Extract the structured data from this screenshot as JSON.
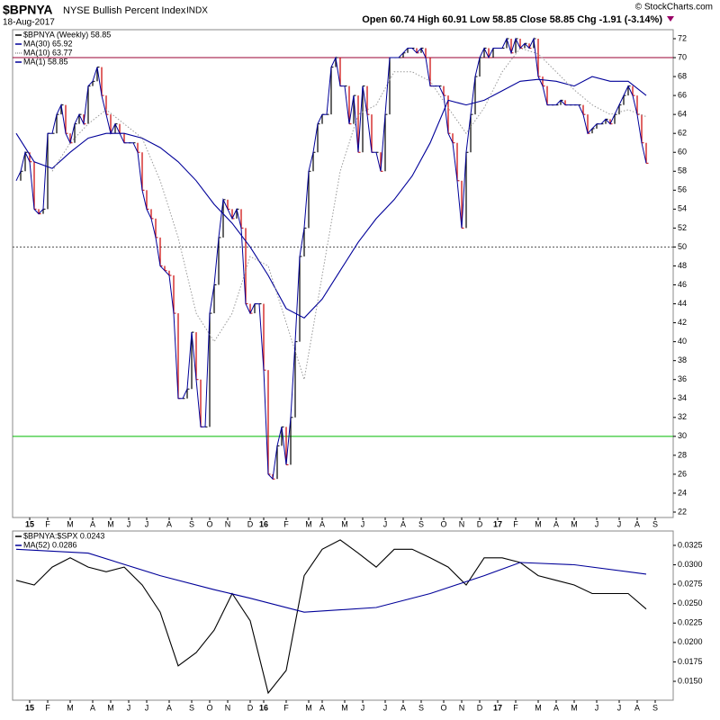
{
  "header": {
    "symbol": "$BPNYA",
    "name": "NYSE Bullish Percent Index",
    "exchange": "INDX",
    "date": "18-Aug-2017",
    "quote": "Open 60.74  High 60.91  Low 58.85  Close 58.85  Chg -1.91 (-3.14%)",
    "copyright": "© StockCharts.com"
  },
  "chart_data": [
    {
      "type": "line",
      "xlim": [
        -0.8,
        146
      ],
      "xticks": [
        {
          "value": 3,
          "label": "15"
        },
        {
          "value": 7,
          "label": "F"
        },
        {
          "value": 12,
          "label": "M"
        },
        {
          "value": 17,
          "label": "A"
        },
        {
          "value": 21,
          "label": "M"
        },
        {
          "value": 25,
          "label": "J"
        },
        {
          "value": 29,
          "label": "J"
        },
        {
          "value": 34,
          "label": "A"
        },
        {
          "value": 39,
          "label": "S"
        },
        {
          "value": 43,
          "label": "O"
        },
        {
          "value": 47,
          "label": "N"
        },
        {
          "value": 52,
          "label": "D"
        },
        {
          "value": 55,
          "label": "16"
        },
        {
          "value": 60,
          "label": "F"
        },
        {
          "value": 65,
          "label": "M"
        },
        {
          "value": 68,
          "label": "A"
        },
        {
          "value": 73,
          "label": "M"
        },
        {
          "value": 77,
          "label": "J"
        },
        {
          "value": 82,
          "label": "J"
        },
        {
          "value": 86,
          "label": "A"
        },
        {
          "value": 90,
          "label": "S"
        },
        {
          "value": 95,
          "label": "O"
        },
        {
          "value": 99,
          "label": "N"
        },
        {
          "value": 103,
          "label": "D"
        },
        {
          "value": 107,
          "label": "17"
        },
        {
          "value": 111,
          "label": "F"
        },
        {
          "value": 116,
          "label": "M"
        },
        {
          "value": 120,
          "label": "A"
        },
        {
          "value": 124,
          "label": "M"
        },
        {
          "value": 129,
          "label": "J"
        },
        {
          "value": 134,
          "label": "J"
        },
        {
          "value": 138,
          "label": "A"
        },
        {
          "value": 142,
          "label": "S"
        }
      ],
      "ylim": [
        21.43,
        72.95
      ],
      "yticks": [
        22,
        24,
        26,
        28,
        30,
        32,
        34,
        36,
        38,
        40,
        42,
        44,
        46,
        48,
        50,
        52,
        54,
        56,
        58,
        60,
        62,
        64,
        66,
        68,
        70,
        72
      ],
      "hlines": [
        {
          "value": 70,
          "color": "#990033",
          "dash": false
        },
        {
          "value": 50,
          "color": "#555555",
          "dash": true
        },
        {
          "value": 30,
          "color": "#00bb00",
          "dash": false
        }
      ],
      "series": [
        {
          "name": "$BPNYA (Weekly) 58.85",
          "style": "bars",
          "color": "#000000",
          "down_color": "#cc0000",
          "line_name": "MA(1) 58.85",
          "line_color": "#000099",
          "x": [
            0,
            1,
            2,
            3,
            4,
            5,
            6,
            7,
            8,
            9,
            10,
            11,
            12,
            13,
            14,
            15,
            16,
            17,
            18,
            19,
            20,
            21,
            22,
            23,
            24,
            25,
            26,
            27,
            28,
            29,
            30,
            31,
            32,
            33,
            34,
            35,
            36,
            37,
            38,
            39,
            40,
            41,
            42,
            43,
            44,
            45,
            46,
            47,
            48,
            49,
            50,
            51,
            52,
            53,
            54,
            55,
            56,
            57,
            58,
            59,
            60,
            61,
            62,
            63,
            64,
            65,
            66,
            67,
            68,
            69,
            70,
            71,
            72,
            73,
            74,
            75,
            76,
            77,
            78,
            79,
            80,
            81,
            82,
            83,
            84,
            85,
            86,
            87,
            88,
            89,
            90,
            91,
            92,
            93,
            94,
            95,
            96,
            97,
            98,
            99,
            100,
            101,
            102,
            103,
            104,
            105,
            106,
            107,
            108,
            109,
            110,
            111,
            112,
            113,
            114,
            115,
            116,
            117,
            118,
            119,
            120,
            121,
            122,
            123,
            124,
            125,
            126,
            127,
            128,
            129,
            130,
            131,
            132,
            133,
            134,
            135,
            136,
            137,
            138,
            139,
            140
          ],
          "values": [
            57,
            58,
            60,
            59,
            54,
            53.5,
            54,
            62,
            62,
            64,
            65,
            62,
            61,
            63,
            64,
            63,
            67,
            67.5,
            69,
            66,
            64,
            62,
            63,
            62,
            61,
            61,
            61,
            60,
            56,
            54,
            53,
            51,
            48,
            47.5,
            47,
            43,
            34,
            34,
            35,
            41,
            36,
            31,
            31,
            43,
            46,
            51,
            55,
            54,
            53,
            54,
            52,
            44,
            43,
            44,
            44,
            37,
            26,
            25.5,
            29,
            31,
            27,
            32,
            40,
            49,
            52,
            58,
            60,
            63,
            64,
            64,
            69,
            70,
            67,
            67,
            63,
            66,
            60,
            67,
            64,
            60,
            60,
            58,
            64,
            70,
            70,
            70,
            70.5,
            71,
            71,
            70.5,
            71,
            70,
            67,
            67,
            67,
            66,
            62,
            61,
            57,
            52,
            60,
            64,
            68,
            70,
            71,
            70,
            71,
            71,
            71,
            72,
            70.5,
            72,
            71,
            71.5,
            71,
            72,
            68,
            67,
            65,
            65,
            65,
            65.5,
            65,
            65,
            65,
            65,
            64,
            62,
            62.5,
            63,
            63,
            63.5,
            63,
            64,
            65,
            66,
            67,
            66,
            64,
            61,
            58.85
          ]
        },
        {
          "name": "MA(30) 65.92",
          "style": "line",
          "color": "#000099",
          "x": [
            0,
            4,
            8,
            12,
            16,
            20,
            24,
            28,
            32,
            36,
            40,
            44,
            48,
            52,
            56,
            60,
            64,
            68,
            72,
            76,
            80,
            84,
            88,
            92,
            96,
            100,
            104,
            108,
            112,
            116,
            120,
            124,
            128,
            132,
            136,
            140
          ],
          "values": [
            62,
            59,
            58.3,
            60,
            61.5,
            62,
            62,
            61.5,
            60.5,
            59,
            57,
            54.5,
            52.5,
            50,
            47,
            43.5,
            42.5,
            44.5,
            47.5,
            50.5,
            53,
            55,
            57.5,
            61,
            65.5,
            65,
            65.5,
            66.5,
            67.5,
            67.7,
            67.5,
            67,
            68,
            67.5,
            67.5,
            66
          ]
        },
        {
          "name": "MA(10) 63.77",
          "style": "dotted",
          "color": "#999999",
          "x": [
            8,
            12,
            16,
            20,
            24,
            28,
            32,
            36,
            40,
            44,
            48,
            52,
            56,
            60,
            64,
            68,
            72,
            76,
            80,
            84,
            88,
            92,
            96,
            100,
            104,
            108,
            112,
            116,
            120,
            124,
            128,
            132,
            136,
            140
          ],
          "values": [
            58,
            61,
            63,
            64.5,
            63,
            61.5,
            57,
            51,
            43,
            40,
            43,
            49,
            48,
            42,
            36,
            47,
            58,
            64,
            65,
            68.5,
            68.5,
            67.5,
            64.7,
            62,
            64.7,
            68.5,
            71,
            70.4,
            68.5,
            66.6,
            65,
            64,
            64.5,
            63.77
          ]
        }
      ]
    },
    {
      "type": "line",
      "xlim": [
        -0.8,
        146
      ],
      "ylim": [
        0.01257,
        0.03435
      ],
      "yticks": [
        {
          "value": 0.015,
          "label": "0.0150"
        },
        {
          "value": 0.0175,
          "label": "0.0175"
        },
        {
          "value": 0.02,
          "label": "0.0200"
        },
        {
          "value": 0.0225,
          "label": "0.0225"
        },
        {
          "value": 0.025,
          "label": "0.0250"
        },
        {
          "value": 0.0275,
          "label": "0.0275"
        },
        {
          "value": 0.03,
          "label": "0.0300"
        },
        {
          "value": 0.0325,
          "label": "0.0325"
        }
      ],
      "series": [
        {
          "name": "$BPNYA:$SPX 0.0243",
          "style": "line",
          "color": "#000000",
          "x": [
            0,
            4,
            8,
            12,
            16,
            20,
            24,
            28,
            32,
            36,
            40,
            44,
            48,
            52,
            56,
            60,
            64,
            68,
            72,
            76,
            80,
            84,
            88,
            92,
            96,
            100,
            104,
            108,
            112,
            116,
            120,
            124,
            128,
            132,
            136,
            140
          ],
          "values": [
            0.028,
            0.0274,
            0.0297,
            0.0309,
            0.0297,
            0.0291,
            0.0297,
            0.0274,
            0.0239,
            0.017,
            0.0187,
            0.0216,
            0.0263,
            0.0228,
            0.0135,
            0.0164,
            0.0286,
            0.032,
            0.0332,
            0.0315,
            0.0297,
            0.032,
            0.032,
            0.0309,
            0.0297,
            0.0274,
            0.0309,
            0.0309,
            0.0303,
            0.0286,
            0.028,
            0.0274,
            0.0263,
            0.0263,
            0.0263,
            0.0243
          ]
        },
        {
          "name": "MA(52) 0.0286",
          "style": "line",
          "color": "#000099",
          "x": [
            0,
            16,
            32,
            44,
            52,
            64,
            80,
            92,
            104,
            112,
            124,
            140
          ],
          "values": [
            0.032,
            0.0315,
            0.0286,
            0.0268,
            0.0257,
            0.0239,
            0.0245,
            0.0263,
            0.0286,
            0.0303,
            0.03,
            0.0288
          ]
        }
      ]
    }
  ]
}
